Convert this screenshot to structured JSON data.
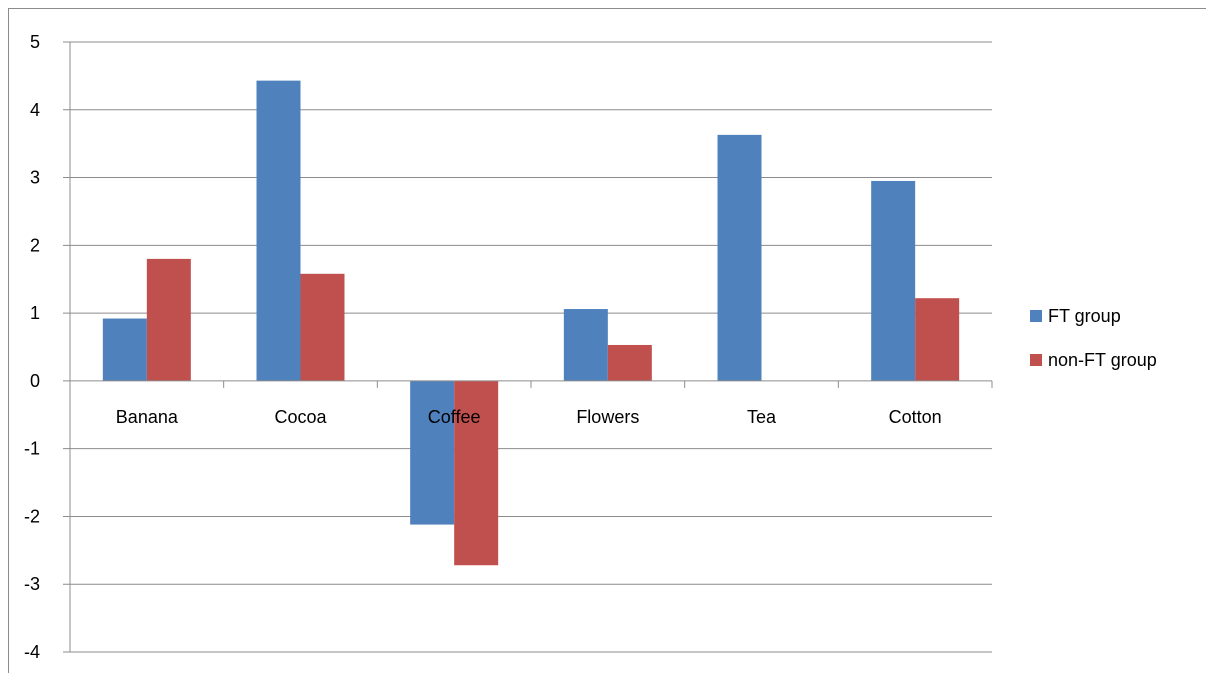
{
  "chart_data": {
    "type": "bar",
    "categories": [
      "Banana",
      "Cocoa",
      "Coffee",
      "Flowers",
      "Tea",
      "Cotton"
    ],
    "series": [
      {
        "name": "FT group",
        "values": [
          0.92,
          4.43,
          -2.12,
          1.06,
          3.63,
          2.95
        ],
        "color": "#4F81BD"
      },
      {
        "name": "non-FT group",
        "values": [
          1.8,
          1.58,
          -2.72,
          0.53,
          0,
          1.22
        ],
        "color": "#C0504D"
      }
    ],
    "ylim": [
      -4,
      5
    ],
    "yticks": [
      "5",
      "4",
      "3",
      "2",
      "1",
      "0",
      "-1",
      "-2",
      "-3",
      "-4"
    ],
    "grid": true,
    "legend_position": "right"
  }
}
